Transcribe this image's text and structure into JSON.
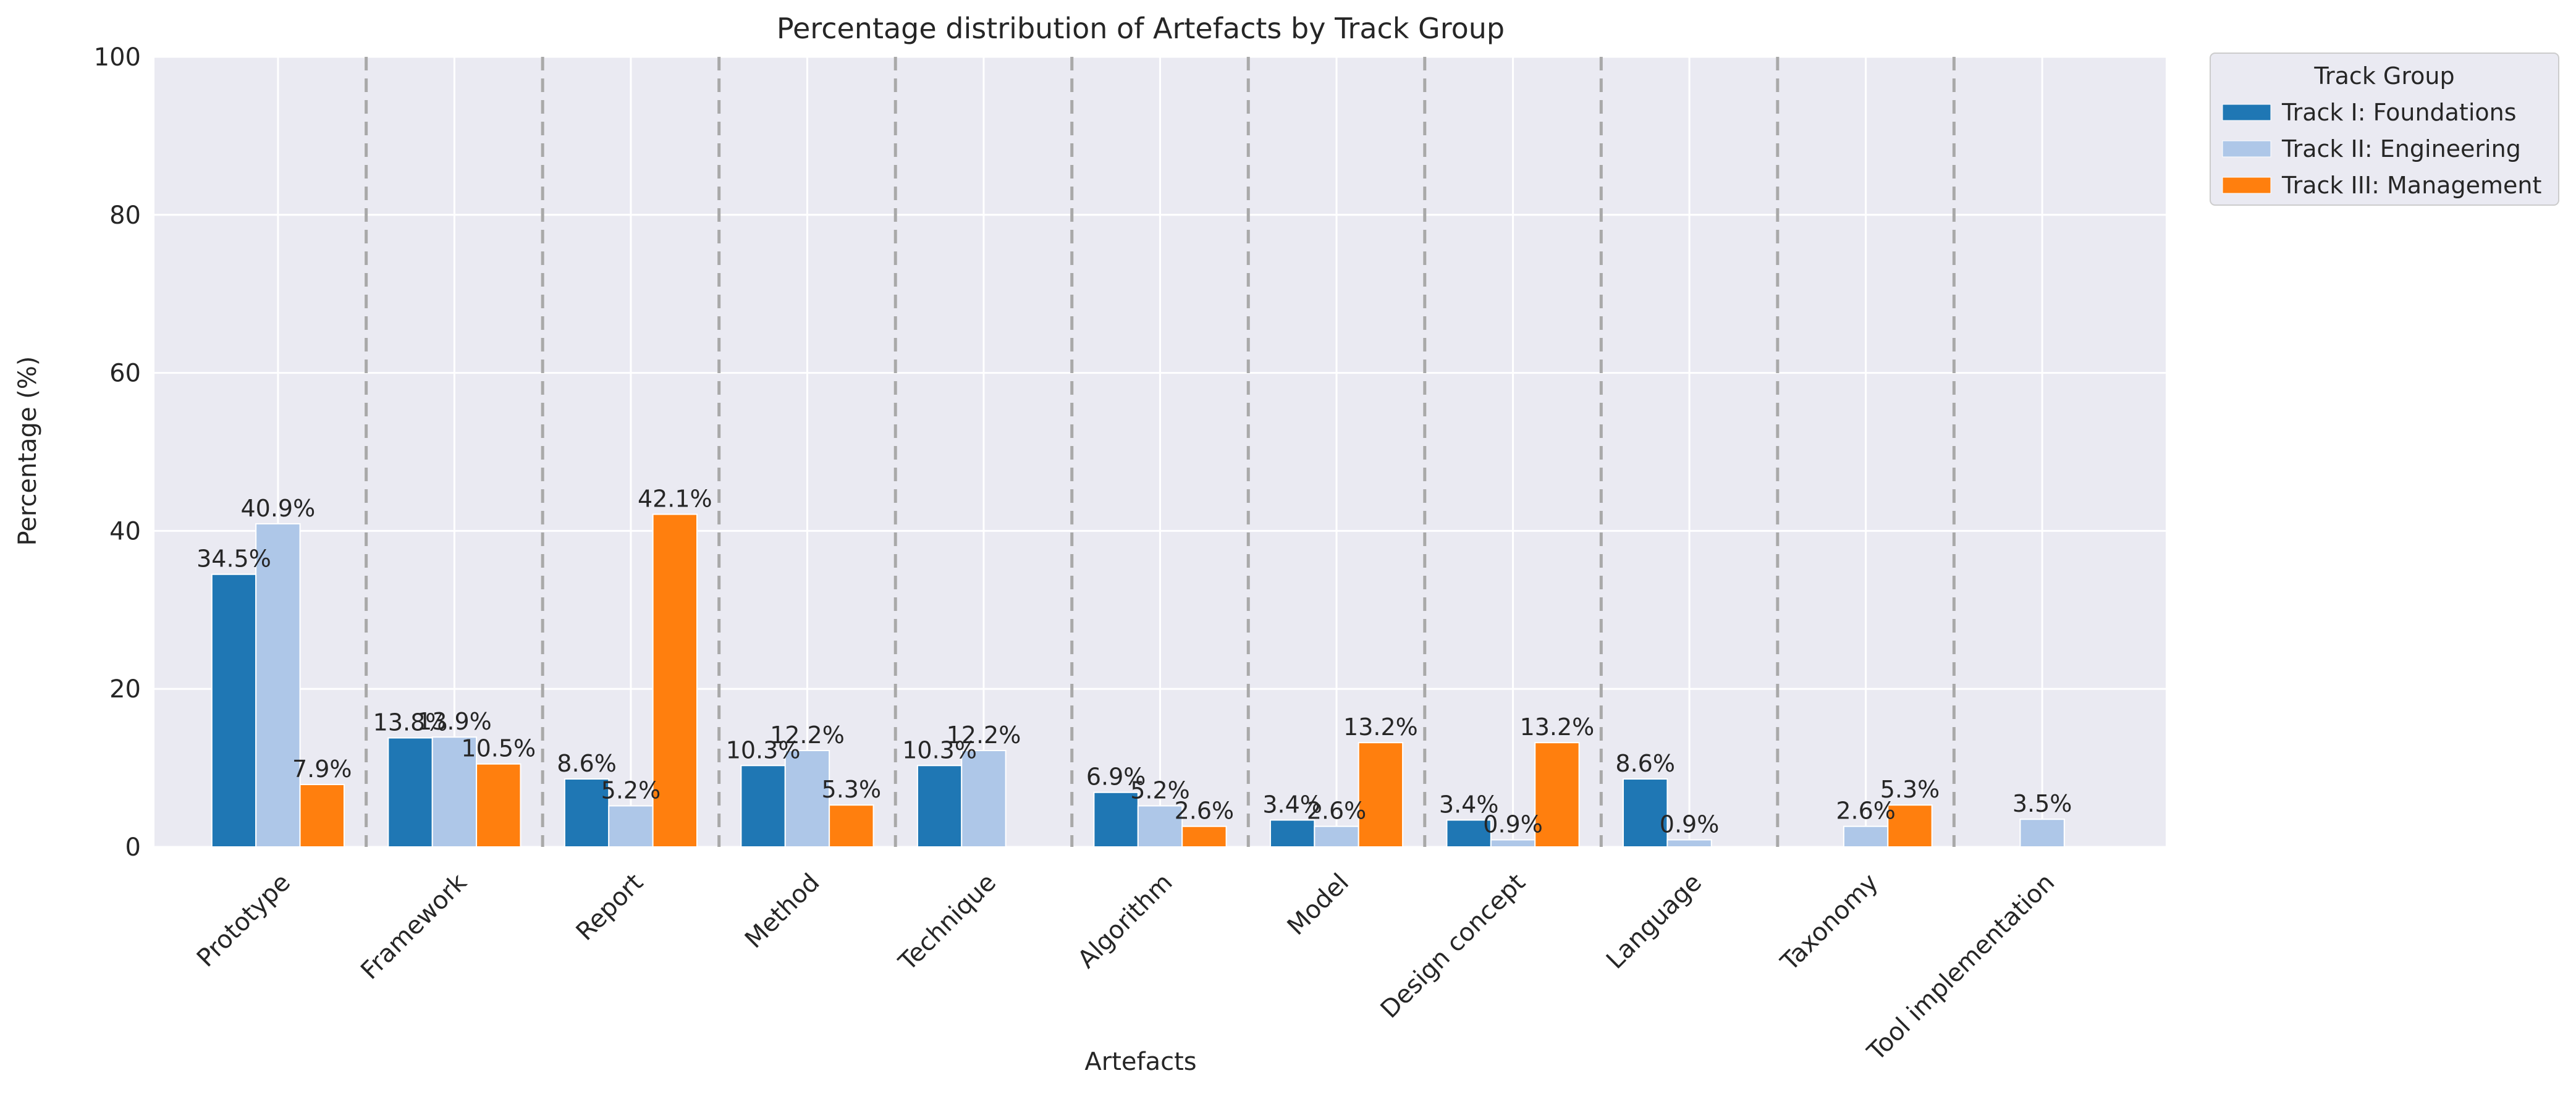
{
  "chart_data": {
    "type": "bar",
    "title": "Percentage distribution of Artefacts by Track Group",
    "xlabel": "Artefacts",
    "ylabel": "Percentage (%)",
    "ylim": [
      0,
      100
    ],
    "yticks": [
      0,
      20,
      40,
      60,
      80,
      100
    ],
    "grid": true,
    "legend_title": "Track Group",
    "legend_position": "outside top-right",
    "categories": [
      "Prototype",
      "Framework",
      "Report",
      "Method",
      "Technique",
      "Algorithm",
      "Model",
      "Design concept",
      "Language",
      "Taxonomy",
      "Tool implementation"
    ],
    "series": [
      {
        "name": "Track I: Foundations",
        "color": "#1f77b4",
        "values": [
          34.5,
          13.8,
          8.6,
          10.3,
          10.3,
          6.9,
          3.4,
          3.4,
          8.6,
          0,
          0
        ],
        "labels": [
          "34.5%",
          "13.8%",
          "8.6%",
          "10.3%",
          "10.3%",
          "6.9%",
          "3.4%",
          "3.4%",
          "8.6%",
          "",
          ""
        ]
      },
      {
        "name": "Track II: Engineering",
        "color": "#aec7e8",
        "values": [
          40.9,
          13.9,
          5.2,
          12.2,
          12.2,
          5.2,
          2.6,
          0.9,
          0.9,
          2.6,
          3.5
        ],
        "labels": [
          "40.9%",
          "13.9%",
          "5.2%",
          "12.2%",
          "12.2%",
          "5.2%",
          "2.6%",
          "0.9%",
          "0.9%",
          "2.6%",
          "3.5%"
        ]
      },
      {
        "name": "Track III: Management",
        "color": "#ff7f0e",
        "values": [
          7.9,
          10.5,
          42.1,
          5.3,
          0,
          2.6,
          13.2,
          13.2,
          0,
          5.3,
          0
        ],
        "labels": [
          "7.9%",
          "10.5%",
          "42.1%",
          "5.3%",
          "",
          "2.6%",
          "13.2%",
          "13.2%",
          "",
          "5.3%",
          ""
        ]
      }
    ],
    "colors": {
      "plot_background": "#eaeaf2",
      "gridline": "#ffffff",
      "separator": "#a9a9a9"
    }
  }
}
